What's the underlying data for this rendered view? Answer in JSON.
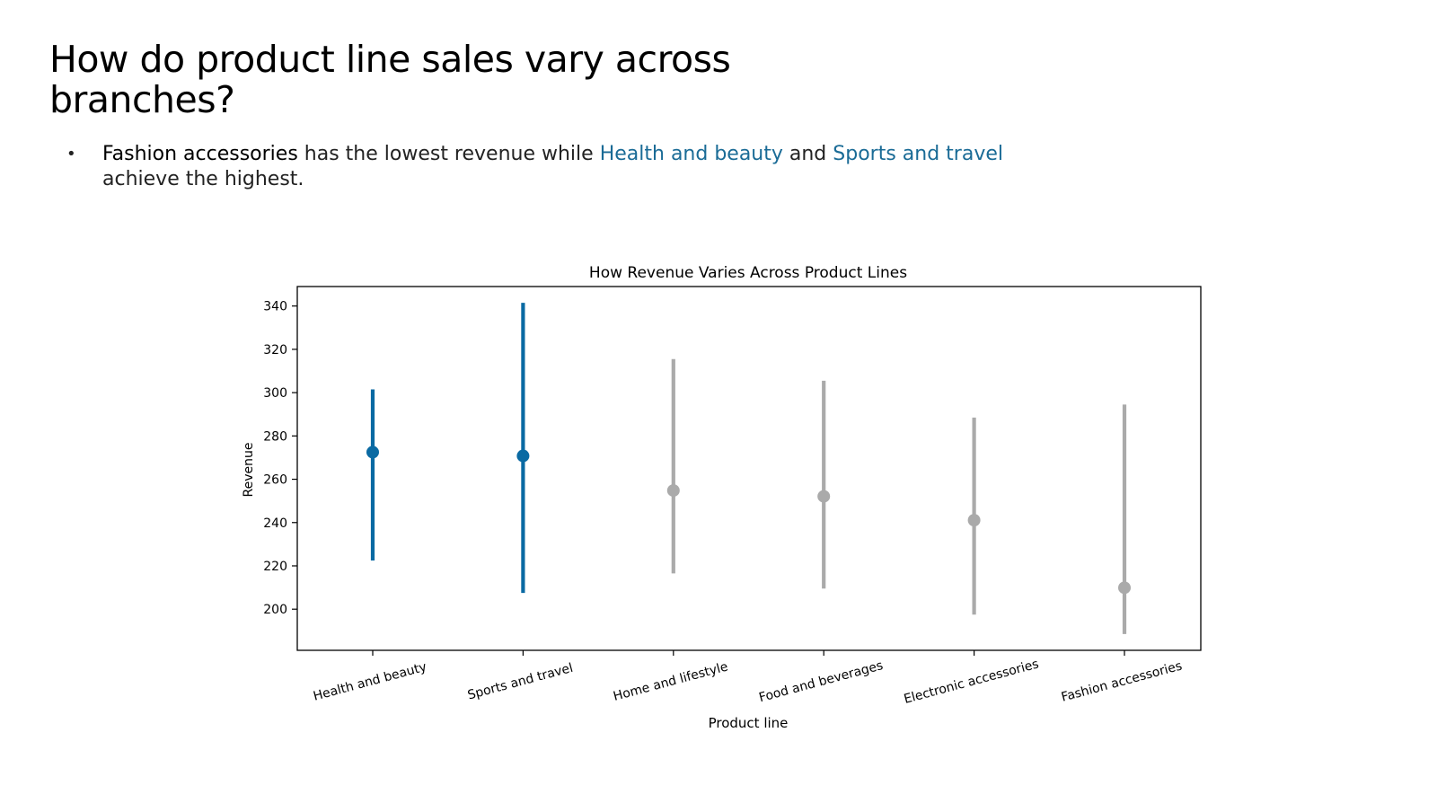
{
  "slide": {
    "title": "How do product line sales vary across branches?",
    "bullet": {
      "seg1": "Fashion accessories",
      "seg2": " has the lowest revenue while ",
      "seg3": "Health and beauty",
      "seg4": " and ",
      "seg5": "Sports and travel",
      "seg6": " achieve the highest."
    }
  },
  "colors": {
    "highlight": "#0a6aa3",
    "muted": "#aaaaaa",
    "text_highlight": "#1a6b96"
  },
  "chart_data": {
    "type": "scatter",
    "title": "How Revenue Varies Across Product Lines",
    "xlabel": "Product line",
    "ylabel": "Revenue",
    "categories": [
      "Health and beauty",
      "Sports and travel",
      "Home and lifestyle",
      "Food and beverages",
      "Electronic accessories",
      "Fashion accessories"
    ],
    "values": [
      272.5,
      270.8,
      254.8,
      252.1,
      241.1,
      209.9
    ],
    "ci_low": [
      222.5,
      207.5,
      216.5,
      209.5,
      197.5,
      188.5
    ],
    "ci_high": [
      301.5,
      341.5,
      315.5,
      305.5,
      288.5,
      294.5
    ],
    "highlighted": [
      true,
      true,
      false,
      false,
      false,
      false
    ],
    "yticks": [
      200,
      220,
      240,
      260,
      280,
      300,
      320,
      340
    ],
    "ylim": [
      181,
      349
    ],
    "grid": false,
    "legend": "none"
  }
}
